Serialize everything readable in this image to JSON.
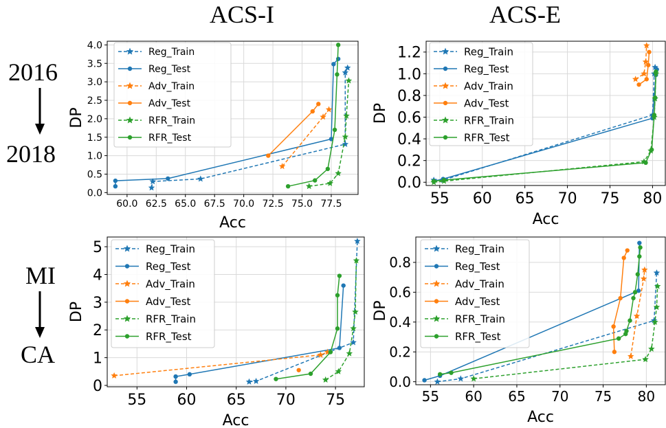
{
  "column_titles": [
    "ACS-I",
    "ACS-E"
  ],
  "rows": [
    {
      "from": "2016",
      "to": "2018"
    },
    {
      "from": "MI",
      "to": "CA"
    }
  ],
  "colors": {
    "Reg": "#1f77b4",
    "Adv": "#ff7f0e",
    "RFR": "#2ca02c",
    "grid": "#d9d9d9"
  },
  "chart_data": [
    {
      "type": "line",
      "position": "top-left",
      "xlabel": "Acc",
      "ylabel": "DP",
      "xlim": [
        58.3,
        79.8
      ],
      "ylim": [
        -0.05,
        4.1
      ],
      "xticks": [
        "60.0",
        "62.5",
        "65.0",
        "67.5",
        "70.0",
        "72.5",
        "75.0",
        "77.5"
      ],
      "xtick_values": [
        60,
        62.5,
        65,
        67.5,
        70,
        72.5,
        75,
        77.5
      ],
      "yticks": [
        "0.0",
        "0.5",
        "1.0",
        "1.5",
        "2.0",
        "2.5",
        "3.0",
        "3.5",
        "4.0"
      ],
      "ytick_values": [
        0,
        0.5,
        1,
        1.5,
        2,
        2.5,
        3,
        3.5,
        4
      ],
      "legend": "upper-left",
      "series": [
        {
          "name": "Reg_Train",
          "method": "Reg",
          "dashed": true,
          "marker": "star",
          "points": [
            [
              62.1,
              0.13
            ],
            [
              62.2,
              0.3
            ],
            [
              66.3,
              0.37
            ],
            [
              78.7,
              1.31
            ],
            [
              78.7,
              3.25
            ],
            [
              78.9,
              3.38
            ]
          ]
        },
        {
          "name": "Reg_Test",
          "method": "Reg",
          "dashed": false,
          "marker": "dot",
          "points": [
            [
              59.0,
              0.17
            ],
            [
              59.0,
              0.32
            ],
            [
              63.5,
              0.38
            ],
            [
              77.5,
              1.45
            ],
            [
              77.7,
              3.48
            ],
            [
              78.1,
              3.62
            ]
          ]
        },
        {
          "name": "Adv_Train",
          "method": "Adv",
          "dashed": true,
          "marker": "star",
          "points": [
            [
              73.3,
              0.71
            ],
            [
              76.8,
              2.05
            ],
            [
              77.3,
              2.25
            ]
          ]
        },
        {
          "name": "Adv_Test",
          "method": "Adv",
          "dashed": false,
          "marker": "dot",
          "points": [
            [
              72.1,
              1.0
            ],
            [
              75.9,
              2.2
            ],
            [
              76.4,
              2.4
            ]
          ]
        },
        {
          "name": "RFR_Train",
          "method": "RFR",
          "dashed": true,
          "marker": "star",
          "points": [
            [
              75.6,
              0.17
            ],
            [
              77.4,
              0.25
            ],
            [
              78.1,
              0.52
            ],
            [
              78.7,
              1.51
            ],
            [
              78.8,
              2.08
            ],
            [
              79.0,
              3.03
            ]
          ]
        },
        {
          "name": "RFR_Test",
          "method": "RFR",
          "dashed": false,
          "marker": "dot",
          "points": [
            [
              73.8,
              0.17
            ],
            [
              76.1,
              0.33
            ],
            [
              77.2,
              0.64
            ],
            [
              77.8,
              1.7
            ],
            [
              78.0,
              3.2
            ],
            [
              78.1,
              4.0
            ]
          ]
        }
      ]
    },
    {
      "type": "line",
      "position": "top-right",
      "xlabel": "Acc",
      "ylabel": "DP",
      "xlim": [
        53.4,
        81.5
      ],
      "ylim": [
        -0.03,
        1.3
      ],
      "xticks": [
        "55",
        "60",
        "65",
        "70",
        "75",
        "80"
      ],
      "xtick_values": [
        55,
        60,
        65,
        70,
        75,
        80
      ],
      "yticks": [
        "0.0",
        "0.2",
        "0.4",
        "0.6",
        "0.8",
        "1.0",
        "1.2"
      ],
      "ytick_values": [
        0,
        0.2,
        0.4,
        0.6,
        0.8,
        1.0,
        1.2
      ],
      "legend": "upper-left",
      "series": [
        {
          "name": "Reg_Train",
          "method": "Reg",
          "dashed": true,
          "marker": "star",
          "points": [
            [
              54.3,
              0.02
            ],
            [
              55.4,
              0.02
            ],
            [
              80.0,
              0.62
            ],
            [
              80.2,
              1.0
            ],
            [
              80.3,
              1.06
            ]
          ]
        },
        {
          "name": "Reg_Test",
          "method": "Reg",
          "dashed": false,
          "marker": "dot",
          "points": [
            [
              54.3,
              0.01
            ],
            [
              55.4,
              0.03
            ],
            [
              80.0,
              0.59
            ],
            [
              80.4,
              0.99
            ],
            [
              80.5,
              1.04
            ]
          ]
        },
        {
          "name": "Adv_Train",
          "method": "Adv",
          "dashed": true,
          "marker": "star",
          "points": [
            [
              78.0,
              0.95
            ],
            [
              79.0,
              1.0
            ],
            [
              79.2,
              1.11
            ],
            [
              79.3,
              1.26
            ]
          ]
        },
        {
          "name": "Adv_Test",
          "method": "Adv",
          "dashed": false,
          "marker": "dot",
          "points": [
            [
              78.4,
              0.9
            ],
            [
              79.3,
              0.95
            ],
            [
              79.5,
              1.08
            ],
            [
              79.6,
              1.2
            ]
          ]
        },
        {
          "name": "RFR_Train",
          "method": "RFR",
          "dashed": true,
          "marker": "star",
          "points": [
            [
              54.3,
              0.0
            ],
            [
              55.5,
              0.01
            ],
            [
              79.0,
              0.19
            ],
            [
              79.8,
              0.29
            ],
            [
              80.2,
              0.6
            ],
            [
              80.3,
              0.77
            ],
            [
              80.4,
              1.0
            ]
          ]
        },
        {
          "name": "RFR_Test",
          "method": "RFR",
          "dashed": false,
          "marker": "dot",
          "points": [
            [
              54.3,
              0.01
            ],
            [
              55.5,
              0.02
            ],
            [
              79.2,
              0.18
            ],
            [
              79.9,
              0.3
            ],
            [
              80.2,
              0.62
            ],
            [
              80.3,
              0.78
            ],
            [
              80.4,
              1.02
            ]
          ]
        }
      ]
    },
    {
      "type": "line",
      "position": "bottom-left",
      "xlabel": "Acc",
      "ylabel": "DP",
      "xlim": [
        52.0,
        77.9
      ],
      "ylim": [
        -0.05,
        5.35
      ],
      "xticks": [
        "55",
        "60",
        "65",
        "70",
        "75"
      ],
      "xtick_values": [
        55,
        60,
        65,
        70,
        75
      ],
      "yticks": [
        "0",
        "1",
        "2",
        "3",
        "4",
        "5"
      ],
      "ytick_values": [
        0,
        1,
        2,
        3,
        4,
        5
      ],
      "legend": "upper-left",
      "series": [
        {
          "name": "Reg_Train",
          "method": "Reg",
          "dashed": true,
          "marker": "star",
          "points": [
            [
              66.3,
              0.13
            ],
            [
              67.0,
              0.15
            ],
            [
              76.8,
              1.55
            ],
            [
              77.2,
              5.2
            ]
          ]
        },
        {
          "name": "Reg_Test",
          "method": "Reg",
          "dashed": false,
          "marker": "dot",
          "points": [
            [
              58.9,
              0.13
            ],
            [
              58.9,
              0.32
            ],
            [
              60.3,
              0.4
            ],
            [
              75.4,
              1.35
            ],
            [
              75.8,
              3.6
            ]
          ]
        },
        {
          "name": "Adv_Train",
          "method": "Adv",
          "dashed": true,
          "marker": "star",
          "points": [
            [
              52.7,
              0.35
            ],
            [
              73.5,
              1.1
            ],
            [
              74.2,
              1.2
            ]
          ]
        },
        {
          "name": "Adv_Test",
          "method": "Adv",
          "dashed": false,
          "marker": "dot",
          "points": [
            [
              71.3,
              0.55
            ]
          ]
        },
        {
          "name": "RFR_Train",
          "method": "RFR",
          "dashed": true,
          "marker": "star",
          "points": [
            [
              74.0,
              0.2
            ],
            [
              75.3,
              0.5
            ],
            [
              76.4,
              1.15
            ],
            [
              76.8,
              2.05
            ],
            [
              77.0,
              2.65
            ],
            [
              77.1,
              4.5
            ]
          ]
        },
        {
          "name": "RFR_Test",
          "method": "RFR",
          "dashed": false,
          "marker": "dot",
          "points": [
            [
              69.0,
              0.23
            ],
            [
              72.5,
              0.42
            ],
            [
              74.5,
              1.2
            ],
            [
              75.2,
              2.05
            ],
            [
              75.2,
              3.25
            ],
            [
              75.4,
              3.95
            ]
          ]
        }
      ]
    },
    {
      "type": "line",
      "position": "bottom-right",
      "xlabel": "Acc",
      "ylabel": "DP",
      "xlim": [
        53.3,
        82.2
      ],
      "ylim": [
        -0.02,
        0.97
      ],
      "xticks": [
        "55",
        "60",
        "65",
        "70",
        "75",
        "80"
      ],
      "xtick_values": [
        55,
        60,
        65,
        70,
        75,
        80
      ],
      "yticks": [
        "0.0",
        "0.2",
        "0.4",
        "0.6",
        "0.8"
      ],
      "ytick_values": [
        0,
        0.2,
        0.4,
        0.6,
        0.8
      ],
      "legend": "upper-left",
      "series": [
        {
          "name": "Reg_Train",
          "method": "Reg",
          "dashed": true,
          "marker": "star",
          "points": [
            [
              55.8,
              0.0
            ],
            [
              58.5,
              0.02
            ],
            [
              80.9,
              0.41
            ],
            [
              81.2,
              0.73
            ]
          ]
        },
        {
          "name": "Reg_Test",
          "method": "Reg",
          "dashed": false,
          "marker": "dot",
          "points": [
            [
              54.3,
              0.01
            ],
            [
              56.1,
              0.04
            ],
            [
              79.1,
              0.61
            ],
            [
              79.2,
              0.93
            ]
          ]
        },
        {
          "name": "Adv_Train",
          "method": "Adv",
          "dashed": true,
          "marker": "star",
          "points": [
            [
              78.2,
              0.17
            ],
            [
              78.9,
              0.44
            ],
            [
              79.7,
              0.69
            ],
            [
              79.8,
              0.75
            ]
          ]
        },
        {
          "name": "Adv_Test",
          "method": "Adv",
          "dashed": false,
          "marker": "dot",
          "points": [
            [
              76.3,
              0.2
            ],
            [
              76.2,
              0.37
            ],
            [
              77.0,
              0.56
            ],
            [
              77.4,
              0.83
            ],
            [
              77.8,
              0.88
            ]
          ]
        },
        {
          "name": "RFR_Train",
          "method": "RFR",
          "dashed": true,
          "marker": "star",
          "points": [
            [
              60.0,
              0.02
            ],
            [
              79.9,
              0.15
            ],
            [
              80.6,
              0.22
            ],
            [
              81.0,
              0.4
            ],
            [
              81.2,
              0.5
            ],
            [
              81.3,
              0.64
            ]
          ]
        },
        {
          "name": "RFR_Test",
          "method": "RFR",
          "dashed": false,
          "marker": "dot",
          "points": [
            [
              56.1,
              0.05
            ],
            [
              57.4,
              0.06
            ],
            [
              76.8,
              0.29
            ],
            [
              77.6,
              0.32
            ],
            [
              77.7,
              0.34
            ],
            [
              78.1,
              0.41
            ],
            [
              78.5,
              0.56
            ],
            [
              78.7,
              0.6
            ],
            [
              79.0,
              0.72
            ],
            [
              79.2,
              0.84
            ],
            [
              79.3,
              0.9
            ]
          ]
        }
      ]
    }
  ]
}
